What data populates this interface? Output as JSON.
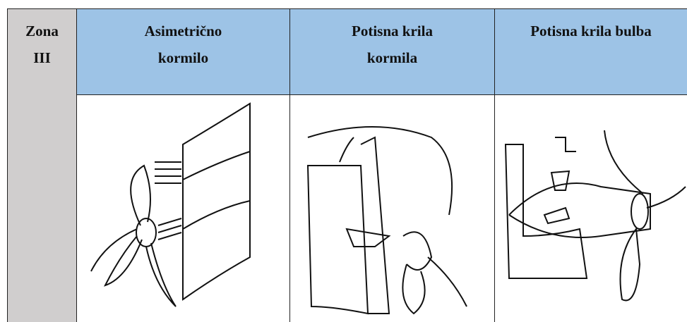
{
  "table": {
    "header": [
      [
        "Zona",
        "III"
      ],
      [
        "Asimetrično",
        "kormilo"
      ],
      [
        "Potisna krila",
        "kormila"
      ],
      [
        "Potisna krila bulba"
      ]
    ]
  }
}
